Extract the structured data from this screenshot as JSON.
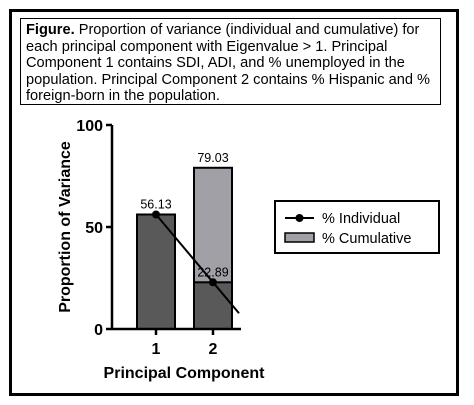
{
  "caption": {
    "label": "Figure.",
    "text": " Proportion of variance (individual and cumulative) for each principal component with Eigenvalue > 1. Principal Component 1 contains SDI, ADI, and % unemployed in the population. Principal Component 2 contains % Hispanic and % foreign-born in the population."
  },
  "chart_data": {
    "type": "bar",
    "categories": [
      "1",
      "2"
    ],
    "series": [
      {
        "name": "% Individual",
        "kind": "line",
        "values": [
          56.13,
          22.89
        ],
        "color": "#000000"
      },
      {
        "name": "% Cumulative",
        "kind": "bar",
        "values": [
          56.13,
          79.03
        ],
        "color": "#a0a0a6"
      }
    ],
    "bar_labels": [
      "56.13",
      "79.03"
    ],
    "point_labels": [
      "56.13",
      "22.89"
    ],
    "individual_bar_color": "#595959",
    "xlabel": "Principal Component",
    "ylabel": "Proportion of Variance",
    "ylim": [
      0,
      100
    ],
    "yticks": [
      0,
      50,
      100
    ],
    "legend_position": "right",
    "grid": false
  }
}
